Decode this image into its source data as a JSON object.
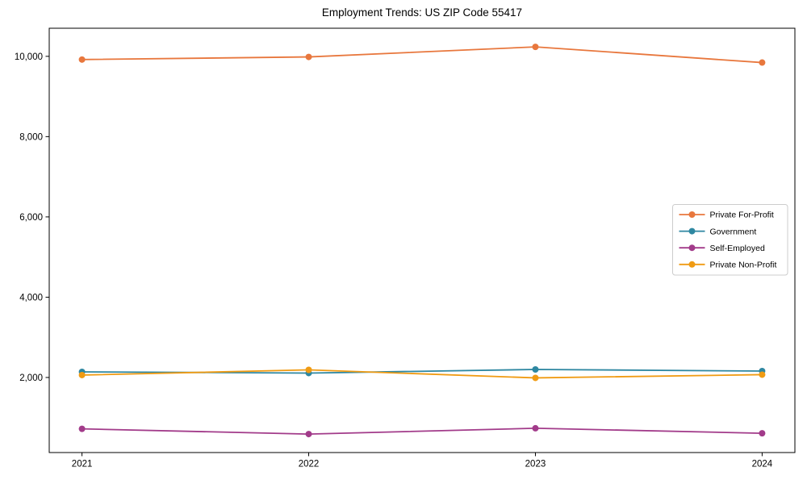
{
  "chart_data": {
    "type": "line",
    "title": "Employment Trends: US ZIP Code 55417",
    "x": [
      2021,
      2022,
      2023,
      2024
    ],
    "xtick_labels": [
      "2021",
      "2022",
      "2023",
      "2024"
    ],
    "yticks": [
      2000,
      4000,
      6000,
      8000,
      10000
    ],
    "ytick_labels": [
      "2,000",
      "4,000",
      "6,000",
      "8,000",
      "10,000"
    ],
    "ylim": [
      130,
      10700
    ],
    "grid": false,
    "marker": "circle",
    "legend_position": "center-right",
    "series": [
      {
        "name": "Private For-Profit",
        "color": "#E8773D",
        "values": [
          9920,
          9985,
          10235,
          9845
        ]
      },
      {
        "name": "Government",
        "color": "#2E87A1",
        "values": [
          2140,
          2110,
          2200,
          2160
        ]
      },
      {
        "name": "Self-Employed",
        "color": "#A23B8A",
        "values": [
          720,
          590,
          735,
          610
        ]
      },
      {
        "name": "Private Non-Profit",
        "color": "#F09B13",
        "values": [
          2060,
          2190,
          1990,
          2070
        ]
      }
    ],
    "colors": {
      "frame": "#000000",
      "tick_label": "#000000",
      "legend_border": "#cccccc",
      "background": "#ffffff"
    }
  }
}
